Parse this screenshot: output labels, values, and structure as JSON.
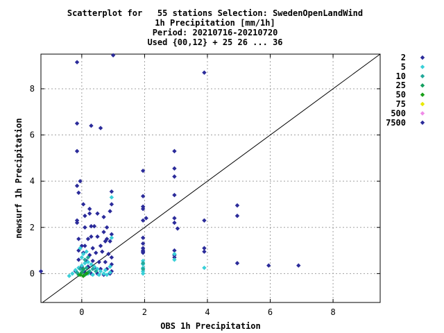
{
  "chart_data": {
    "type": "scatter",
    "title_lines": [
      "Scatterplot for   55 stations Selection: SwedenOpenLandWind",
      "1h Precipitation [mm/1h]",
      "Period: 20210716-20210720",
      "Used {00,12} + 25 26 ... 36"
    ],
    "xlabel": "OBS 1h Precipitation",
    "ylabel": "newsurf 1h Precipitation",
    "xlim": [
      -1.3,
      9.5
    ],
    "ylim": [
      -1.25,
      9.5
    ],
    "x_ticks": [
      0,
      2,
      4,
      6,
      8
    ],
    "y_ticks": [
      0,
      2,
      4,
      6,
      8
    ],
    "grid": true,
    "diagonal": true,
    "legend_position": "right",
    "legend": [
      {
        "label": "2",
        "color": "#2b2b9a"
      },
      {
        "label": "5",
        "color": "#3ad0d8"
      },
      {
        "label": "10",
        "color": "#22a89a"
      },
      {
        "label": "25",
        "color": "#15a060"
      },
      {
        "label": "50",
        "color": "#19a019"
      },
      {
        "label": "75",
        "color": "#e8e800"
      },
      {
        "label": "500",
        "color": "#f08ce8"
      },
      {
        "label": "7500",
        "color": "#2b2b9a"
      }
    ],
    "series": [
      {
        "color": "#2b2b9a",
        "points": [
          [
            -1.3,
            0.1
          ],
          [
            -0.15,
            9.15
          ],
          [
            -0.15,
            6.5
          ],
          [
            -0.15,
            5.3
          ],
          [
            -0.15,
            3.8
          ],
          [
            -0.05,
            4.0
          ],
          [
            -0.1,
            3.5
          ],
          [
            0.3,
            6.4
          ],
          [
            0.6,
            6.3
          ],
          [
            0.05,
            3.0
          ],
          [
            0.25,
            2.8
          ],
          [
            0.25,
            2.6
          ],
          [
            0.1,
            2.5
          ],
          [
            0.5,
            2.6
          ],
          [
            -0.15,
            2.3
          ],
          [
            -0.15,
            2.2
          ],
          [
            0.1,
            2.0
          ],
          [
            0.3,
            2.05
          ],
          [
            0.4,
            2.05
          ],
          [
            0.7,
            2.45
          ],
          [
            0.8,
            2.0
          ],
          [
            0.9,
            2.7
          ],
          [
            0.95,
            3.0
          ],
          [
            0.95,
            3.55
          ],
          [
            0.7,
            1.8
          ],
          [
            0.5,
            1.6
          ],
          [
            0.8,
            1.5
          ],
          [
            0.9,
            1.4
          ],
          [
            0.3,
            1.6
          ],
          [
            0.2,
            1.5
          ],
          [
            -0.1,
            1.5
          ],
          [
            0.0,
            1.2
          ],
          [
            0.1,
            1.2
          ],
          [
            0.35,
            1.1
          ],
          [
            0.6,
            1.2
          ],
          [
            0.75,
            1.4
          ],
          [
            0.95,
            1.7
          ],
          [
            -0.1,
            1.0
          ],
          [
            0.05,
            0.9
          ],
          [
            0.25,
            0.8
          ],
          [
            0.45,
            0.9
          ],
          [
            0.65,
            0.95
          ],
          [
            0.85,
            0.85
          ],
          [
            0.95,
            0.7
          ],
          [
            -0.1,
            0.6
          ],
          [
            0.15,
            0.55
          ],
          [
            0.35,
            0.55
          ],
          [
            0.55,
            0.5
          ],
          [
            0.75,
            0.5
          ],
          [
            0.95,
            0.4
          ],
          [
            0.0,
            0.3
          ],
          [
            0.2,
            0.3
          ],
          [
            0.4,
            0.25
          ],
          [
            0.6,
            0.2
          ],
          [
            0.8,
            0.2
          ],
          [
            0.95,
            0.1
          ],
          [
            -0.2,
            0.1
          ],
          [
            0.1,
            0.05
          ],
          [
            0.3,
            0.0
          ],
          [
            0.5,
            0.0
          ],
          [
            0.7,
            -0.05
          ],
          [
            0.9,
            0.0
          ],
          [
            1.0,
            9.45
          ],
          [
            1.95,
            4.45
          ],
          [
            1.95,
            3.35
          ],
          [
            1.95,
            2.9
          ],
          [
            1.95,
            2.8
          ],
          [
            2.05,
            2.4
          ],
          [
            1.95,
            2.3
          ],
          [
            1.95,
            1.55
          ],
          [
            1.95,
            1.3
          ],
          [
            1.95,
            1.1
          ],
          [
            1.95,
            1.0
          ],
          [
            1.95,
            0.95
          ],
          [
            1.95,
            0.9
          ],
          [
            2.95,
            5.3
          ],
          [
            2.95,
            4.55
          ],
          [
            2.95,
            4.2
          ],
          [
            2.95,
            3.4
          ],
          [
            2.95,
            2.4
          ],
          [
            2.95,
            2.2
          ],
          [
            3.05,
            1.95
          ],
          [
            2.95,
            1.0
          ],
          [
            2.95,
            0.8
          ],
          [
            2.95,
            0.7
          ],
          [
            3.9,
            8.7
          ],
          [
            3.9,
            2.3
          ],
          [
            3.9,
            1.1
          ],
          [
            3.9,
            0.95
          ],
          [
            4.95,
            2.95
          ],
          [
            4.95,
            2.5
          ],
          [
            4.95,
            0.45
          ],
          [
            5.95,
            0.35
          ],
          [
            6.9,
            0.35
          ]
        ]
      },
      {
        "color": "#3ad0d8",
        "points": [
          [
            -0.4,
            -0.1
          ],
          [
            -0.3,
            0.0
          ],
          [
            -0.2,
            0.15
          ],
          [
            -0.1,
            0.25
          ],
          [
            0.0,
            0.35
          ],
          [
            0.1,
            0.45
          ],
          [
            0.2,
            0.5
          ],
          [
            0.3,
            0.4
          ],
          [
            0.4,
            0.3
          ],
          [
            0.5,
            0.2
          ],
          [
            0.6,
            0.1
          ],
          [
            0.7,
            0.0
          ],
          [
            0.8,
            -0.05
          ],
          [
            0.9,
            0.05
          ],
          [
            0.0,
            0.7
          ],
          [
            0.05,
            0.85
          ],
          [
            0.15,
            0.95
          ],
          [
            -0.05,
            1.1
          ],
          [
            0.95,
            3.3
          ],
          [
            0.95,
            1.55
          ],
          [
            0.2,
            0.0
          ],
          [
            0.35,
            -0.05
          ],
          [
            0.55,
            -0.05
          ],
          [
            0.75,
            0.15
          ],
          [
            0.9,
            0.3
          ],
          [
            1.95,
            0.55
          ],
          [
            1.95,
            0.4
          ],
          [
            1.95,
            0.25
          ],
          [
            1.95,
            0.1
          ],
          [
            1.95,
            0.0
          ],
          [
            2.95,
            0.85
          ],
          [
            2.95,
            0.6
          ],
          [
            3.9,
            0.25
          ]
        ]
      },
      {
        "color": "#22a89a",
        "points": [
          [
            -0.15,
            0.05
          ],
          [
            -0.05,
            0.2
          ],
          [
            0.05,
            0.15
          ],
          [
            0.15,
            0.25
          ],
          [
            0.25,
            0.1
          ],
          [
            0.35,
            0.2
          ],
          [
            0.45,
            0.1
          ],
          [
            0.1,
            0.6
          ],
          [
            0.2,
            0.7
          ],
          [
            1.95,
            0.2
          ],
          [
            1.95,
            0.45
          ]
        ]
      },
      {
        "color": "#15a060",
        "points": [
          [
            -0.1,
            -0.05
          ],
          [
            0.0,
            0.05
          ],
          [
            0.1,
            -0.05
          ],
          [
            0.2,
            0.05
          ],
          [
            0.05,
            0.2
          ]
        ]
      },
      {
        "color": "#19a019",
        "points": [
          [
            -0.05,
            -0.05
          ],
          [
            0.05,
            -0.1
          ],
          [
            0.15,
            0.0
          ]
        ]
      }
    ]
  }
}
